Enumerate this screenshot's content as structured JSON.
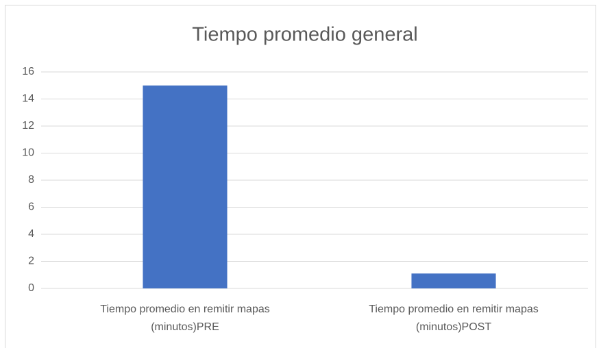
{
  "chart_data": {
    "type": "bar",
    "title": "Tiempo promedio general",
    "categories": [
      "Tiempo promedio en remitir mapas (minutos)PRE",
      "Tiempo promedio en remitir mapas (minutos)POST"
    ],
    "values": [
      15,
      1.1
    ],
    "color": "#4472c4",
    "ylim": [
      0,
      16
    ],
    "yticks": [
      0,
      2,
      4,
      6,
      8,
      10,
      12,
      14,
      16
    ],
    "grid": true
  }
}
